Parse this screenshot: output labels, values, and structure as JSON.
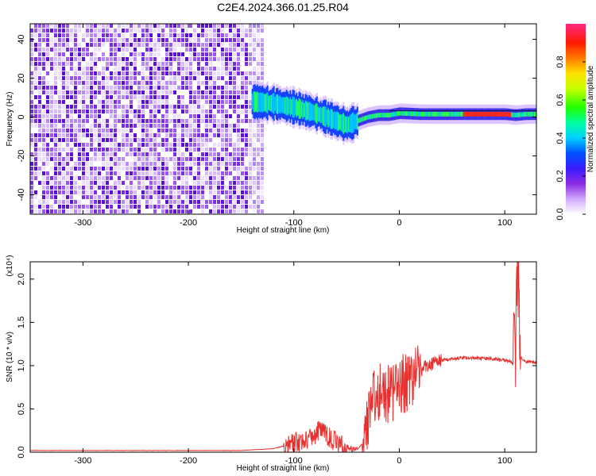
{
  "title": "C2E4.2024.366.01.25.R04",
  "chart_data": [
    {
      "type": "heatmap",
      "xlabel": "Height of straight line (km)",
      "ylabel": "Frequency (Hz)",
      "xlim": [
        -350,
        130
      ],
      "ylim": [
        -50,
        48
      ],
      "xticks": [
        -300,
        -200,
        -100,
        0,
        100
      ],
      "yticks": [
        40,
        20,
        0,
        -20,
        -40
      ],
      "noise_region_x": [
        -350,
        -128
      ],
      "signal_trace": {
        "x": [
          -140,
          -120,
          -100,
          -80,
          -60,
          -50,
          -40,
          -30,
          -20,
          -10,
          0,
          20,
          40,
          60,
          80,
          100,
          110,
          120,
          130
        ],
        "freq": [
          8,
          7,
          5,
          2,
          -2,
          -4,
          -2,
          0,
          1,
          1,
          2,
          1.5,
          1.5,
          1.5,
          1.5,
          1.5,
          1,
          1.5,
          1.5
        ]
      },
      "colorbar": {
        "label": "Normalized spectral amplitude",
        "range": [
          0,
          1
        ],
        "ticks": [
          "0.0",
          "0.2",
          "0.4",
          "0.6",
          "0.8"
        ]
      }
    },
    {
      "type": "line",
      "xlabel": "Height of straight line (km)",
      "ylabel": "SNR (10 * v/v)",
      "scale_label": "(x10⁴)",
      "xlim": [
        -350,
        130
      ],
      "ylim": [
        0,
        2.2
      ],
      "xticks": [
        -300,
        -200,
        -100,
        0,
        100
      ],
      "yticks": [
        "0.0",
        "0.5",
        "1.0",
        "1.5",
        "2.0"
      ],
      "color": "#e8302f",
      "x": [
        -350,
        -150,
        -120,
        -100,
        -90,
        -80,
        -75,
        -70,
        -60,
        -50,
        -40,
        -35,
        -30,
        -25,
        -20,
        -15,
        -10,
        -5,
        0,
        10,
        20,
        30,
        40,
        50,
        60,
        70,
        80,
        90,
        100,
        105,
        110,
        112,
        115,
        120,
        130
      ],
      "y": [
        0.02,
        0.02,
        0.04,
        0.1,
        0.14,
        0.2,
        0.28,
        0.2,
        0.12,
        0.05,
        0.03,
        0.1,
        0.4,
        0.6,
        0.7,
        0.72,
        0.65,
        0.7,
        0.75,
        0.85,
        0.95,
        1.02,
        1.06,
        1.08,
        1.09,
        1.09,
        1.08,
        1.08,
        1.06,
        1.05,
        1.0,
        2.2,
        1.1,
        1.05,
        1.04
      ]
    }
  ]
}
